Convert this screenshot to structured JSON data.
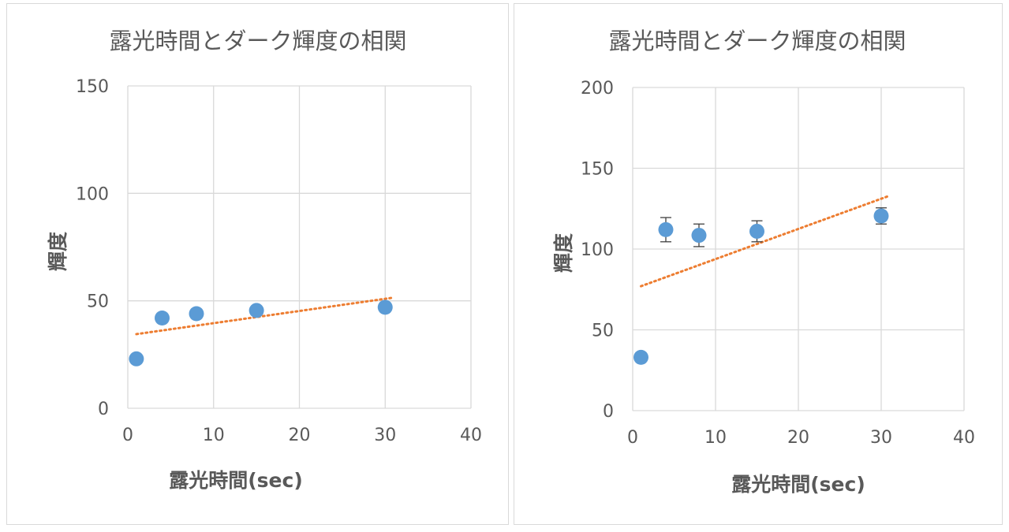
{
  "chart_data": [
    {
      "type": "scatter",
      "title": "露光時間とダーク輝度の相関",
      "xlabel": "露光時間(sec)",
      "ylabel": "輝度",
      "xlim": [
        0,
        40
      ],
      "ylim": [
        0,
        150
      ],
      "xticks": [
        "0",
        "10",
        "20",
        "30",
        "40"
      ],
      "yticks": [
        "0",
        "50",
        "100",
        "150"
      ],
      "grid": true,
      "legend": "none",
      "point_color": "#5b9bd5",
      "trend_color": "#ed7d31",
      "series": [
        {
          "x": [
            1,
            4,
            8,
            15,
            30
          ],
          "y": [
            23,
            42,
            44,
            45.5,
            47
          ],
          "error": null
        }
      ],
      "trendline": {
        "type": "linear",
        "x": [
          1,
          31
        ],
        "y": [
          34.5,
          51.5
        ]
      }
    },
    {
      "type": "scatter",
      "title": "露光時間とダーク輝度の相関",
      "xlabel": "露光時間(sec)",
      "ylabel": "輝度",
      "xlim": [
        0,
        40
      ],
      "ylim": [
        0,
        200
      ],
      "xticks": [
        "0",
        "10",
        "20",
        "30",
        "40"
      ],
      "yticks": [
        "0",
        "50",
        "100",
        "150",
        "200"
      ],
      "grid": true,
      "legend": "none",
      "point_color": "#5b9bd5",
      "trend_color": "#ed7d31",
      "series": [
        {
          "x": [
            1,
            4,
            8,
            15,
            30
          ],
          "y": [
            33,
            112,
            108.5,
            111,
            120.5
          ],
          "error": [
            0,
            7.5,
            7,
            6.5,
            5
          ]
        }
      ],
      "trendline": {
        "type": "linear",
        "x": [
          1,
          31
        ],
        "y": [
          77,
          133
        ]
      }
    }
  ]
}
